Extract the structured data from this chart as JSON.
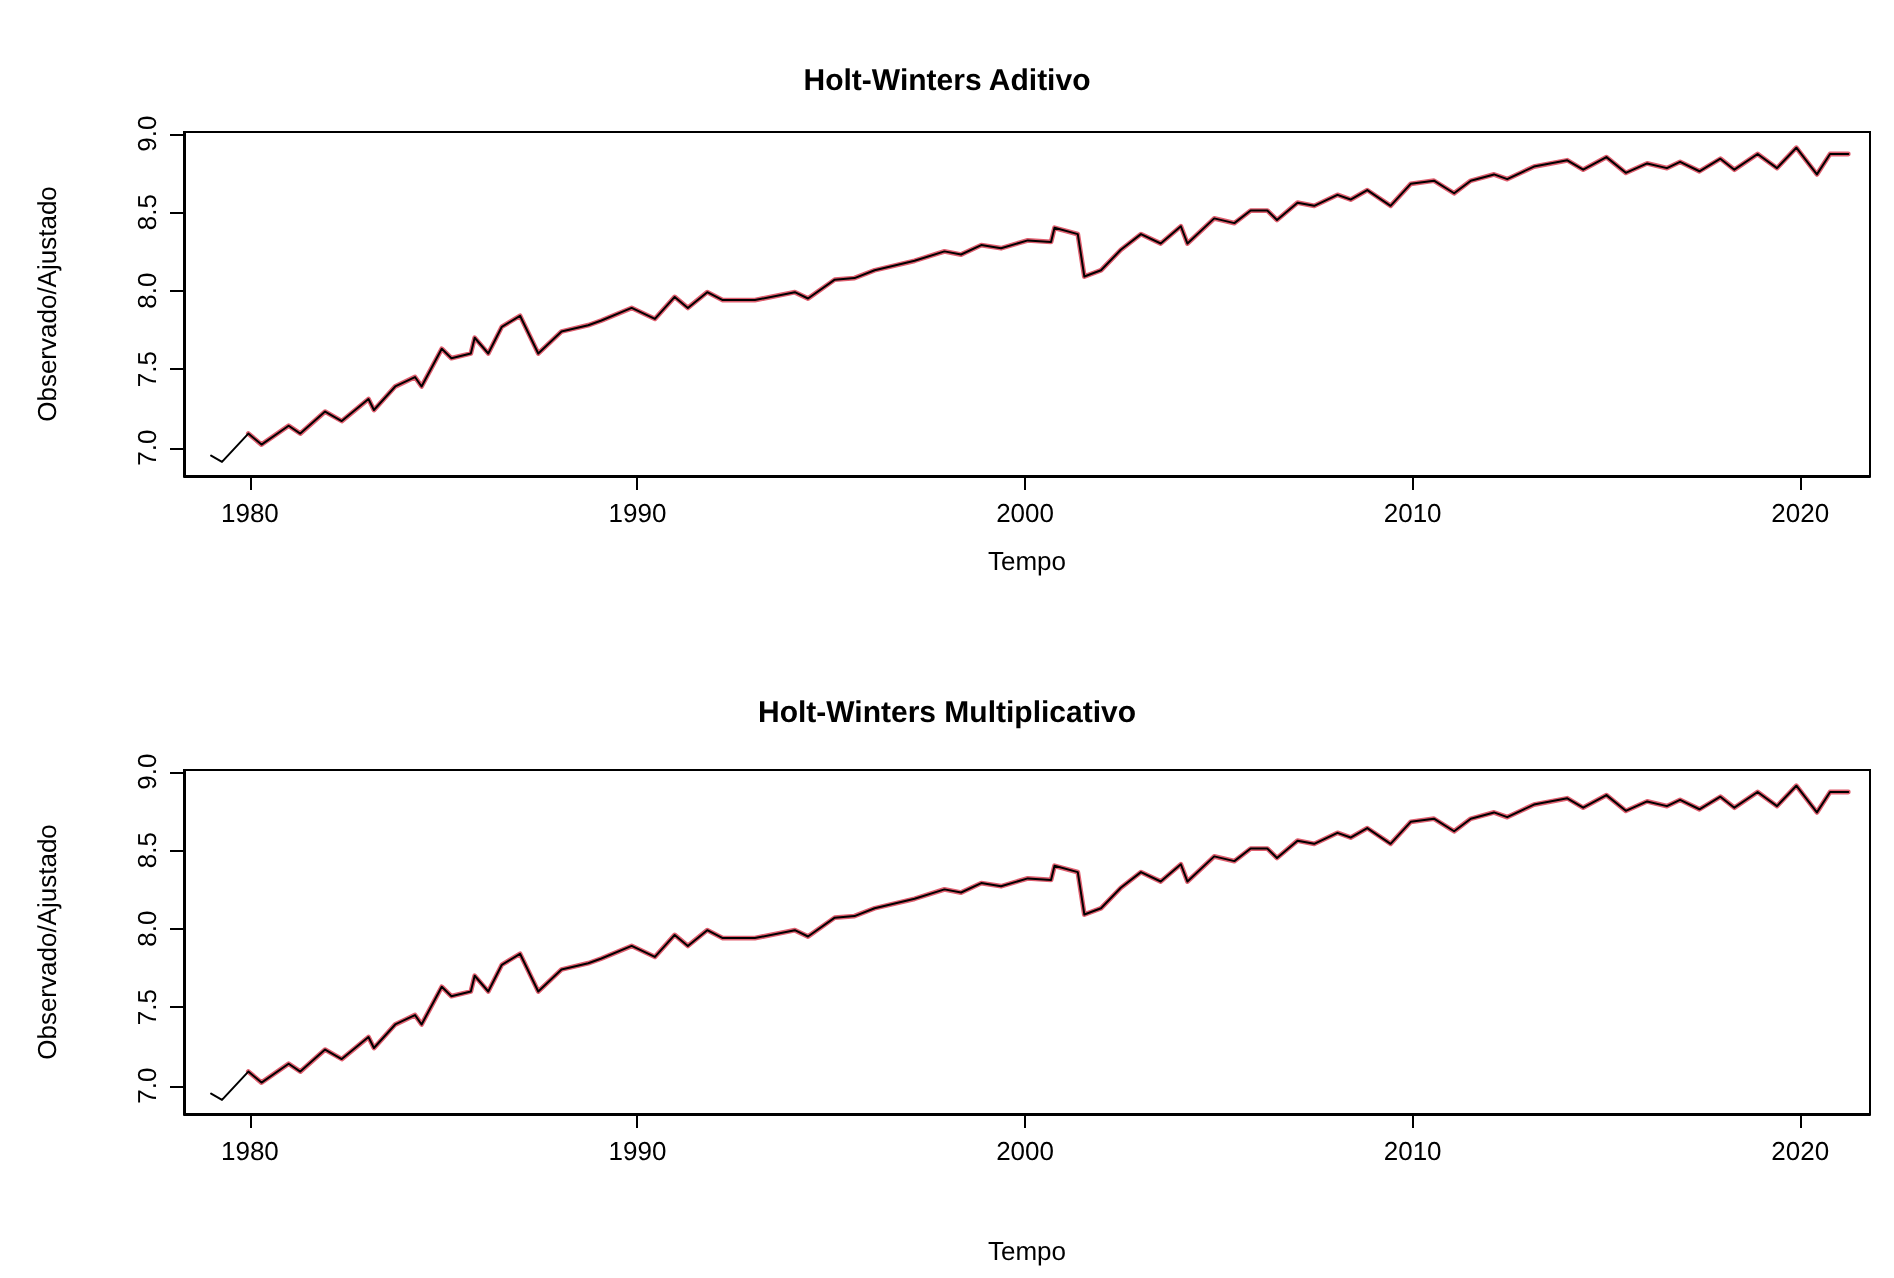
{
  "chart_data": [
    {
      "type": "line",
      "title": "Holt-Winters Aditivo",
      "xlabel": "Tempo",
      "ylabel": "Observado/Ajustado",
      "x": [
        1979.0,
        1979.28,
        1979.96,
        1980.3,
        1981.0,
        1981.3,
        1981.94,
        1982.37,
        1983.06,
        1983.2,
        1983.75,
        1984.26,
        1984.43,
        1984.95,
        1985.2,
        1985.7,
        1985.8,
        1986.15,
        1986.5,
        1986.97,
        1987.44,
        1988.04,
        1988.73,
        1989.07,
        1989.85,
        1990.45,
        1990.96,
        1991.3,
        1991.8,
        1992.2,
        1993.03,
        1994.06,
        1994.4,
        1995.09,
        1995.6,
        1996.12,
        1997.15,
        1997.92,
        1998.35,
        1998.87,
        1999.38,
        2000.07,
        2000.67,
        2000.76,
        2001.36,
        2001.53,
        2001.96,
        2002.47,
        2002.99,
        2003.5,
        2004.02,
        2004.19,
        2004.88,
        2005.4,
        2005.82,
        2006.25,
        2006.5,
        2007.03,
        2007.46,
        2008.06,
        2008.4,
        2008.83,
        2009.43,
        2009.95,
        2010.55,
        2011.07,
        2011.5,
        2012.1,
        2012.44,
        2013.13,
        2013.99,
        2014.4,
        2015.0,
        2015.5,
        2016.05,
        2016.56,
        2016.9,
        2017.4,
        2017.94,
        2018.3,
        2018.9,
        2019.4,
        2019.9,
        2020.43,
        2020.77,
        2021.24
      ],
      "series": [
        {
          "color": "#000000",
          "values": [
            6.95,
            6.91,
            7.09,
            7.02,
            7.14,
            7.09,
            7.23,
            7.17,
            7.31,
            7.24,
            7.39,
            7.45,
            7.39,
            7.63,
            7.57,
            7.6,
            7.7,
            7.6,
            7.77,
            7.84,
            7.6,
            7.74,
            7.78,
            7.81,
            7.89,
            7.82,
            7.96,
            7.89,
            7.99,
            7.94,
            7.94,
            7.99,
            7.95,
            8.07,
            8.08,
            8.13,
            8.19,
            8.25,
            8.23,
            8.29,
            8.27,
            8.32,
            8.31,
            8.4,
            8.36,
            8.09,
            8.13,
            8.26,
            8.36,
            8.3,
            8.41,
            8.3,
            8.46,
            8.43,
            8.51,
            8.51,
            8.45,
            8.56,
            8.54,
            8.61,
            8.58,
            8.64,
            8.54,
            8.68,
            8.7,
            8.62,
            8.7,
            8.74,
            8.71,
            8.79,
            8.83,
            8.77,
            8.85,
            8.75,
            8.81,
            8.78,
            8.82,
            8.76,
            8.84,
            8.77,
            8.87,
            8.78,
            8.91,
            8.74,
            8.87,
            8.87
          ]
        },
        {
          "color": "#e06070",
          "values": [
            null,
            null,
            7.09,
            7.02,
            7.14,
            7.09,
            7.23,
            7.17,
            7.31,
            7.24,
            7.39,
            7.45,
            7.39,
            7.63,
            7.57,
            7.6,
            7.7,
            7.6,
            7.77,
            7.84,
            7.6,
            7.74,
            7.78,
            7.81,
            7.89,
            7.82,
            7.96,
            7.89,
            7.99,
            7.94,
            7.94,
            7.99,
            7.95,
            8.07,
            8.08,
            8.13,
            8.19,
            8.25,
            8.23,
            8.29,
            8.27,
            8.32,
            8.31,
            8.4,
            8.36,
            8.09,
            8.13,
            8.26,
            8.36,
            8.3,
            8.41,
            8.3,
            8.46,
            8.43,
            8.51,
            8.51,
            8.45,
            8.56,
            8.54,
            8.61,
            8.58,
            8.64,
            8.54,
            8.68,
            8.7,
            8.62,
            8.7,
            8.74,
            8.71,
            8.79,
            8.83,
            8.77,
            8.85,
            8.75,
            8.81,
            8.78,
            8.82,
            8.76,
            8.84,
            8.77,
            8.87,
            8.78,
            8.91,
            8.74,
            8.87,
            8.87
          ]
        }
      ],
      "xlim": [
        1978.3,
        2021.8
      ],
      "ylim": [
        6.82,
        9.01
      ],
      "xticks": [
        1980,
        1990,
        2000,
        2010,
        2020
      ],
      "yticks": [
        {
          "value": 7,
          "label": "7.0"
        },
        {
          "value": 7.5,
          "label": "7.5"
        },
        {
          "value": 8,
          "label": "8.0"
        },
        {
          "value": 8.5,
          "label": "8.5"
        },
        {
          "value": 9,
          "label": "9.0"
        }
      ],
      "grid": false
    },
    {
      "type": "line",
      "title": "Holt-Winters Multiplicativo",
      "xlabel": "Tempo",
      "ylabel": "Observado/Ajustado",
      "x": [
        1979.0,
        1979.28,
        1979.96,
        1980.3,
        1981.0,
        1981.3,
        1981.94,
        1982.37,
        1983.06,
        1983.2,
        1983.75,
        1984.26,
        1984.43,
        1984.95,
        1985.2,
        1985.7,
        1985.8,
        1986.15,
        1986.5,
        1986.97,
        1987.44,
        1988.04,
        1988.73,
        1989.07,
        1989.85,
        1990.45,
        1990.96,
        1991.3,
        1991.8,
        1992.2,
        1993.03,
        1994.06,
        1994.4,
        1995.09,
        1995.6,
        1996.12,
        1997.15,
        1997.92,
        1998.35,
        1998.87,
        1999.38,
        2000.07,
        2000.67,
        2000.76,
        2001.36,
        2001.53,
        2001.96,
        2002.47,
        2002.99,
        2003.5,
        2004.02,
        2004.19,
        2004.88,
        2005.4,
        2005.82,
        2006.25,
        2006.5,
        2007.03,
        2007.46,
        2008.06,
        2008.4,
        2008.83,
        2009.43,
        2009.95,
        2010.55,
        2011.07,
        2011.5,
        2012.1,
        2012.44,
        2013.13,
        2013.99,
        2014.4,
        2015.0,
        2015.5,
        2016.05,
        2016.56,
        2016.9,
        2017.4,
        2017.94,
        2018.3,
        2018.9,
        2019.4,
        2019.9,
        2020.43,
        2020.77,
        2021.24
      ],
      "series": [
        {
          "color": "#000000",
          "values": [
            6.95,
            6.91,
            7.09,
            7.02,
            7.14,
            7.09,
            7.23,
            7.17,
            7.31,
            7.24,
            7.39,
            7.45,
            7.39,
            7.63,
            7.57,
            7.6,
            7.7,
            7.6,
            7.77,
            7.84,
            7.6,
            7.74,
            7.78,
            7.81,
            7.89,
            7.82,
            7.96,
            7.89,
            7.99,
            7.94,
            7.94,
            7.99,
            7.95,
            8.07,
            8.08,
            8.13,
            8.19,
            8.25,
            8.23,
            8.29,
            8.27,
            8.32,
            8.31,
            8.4,
            8.36,
            8.09,
            8.13,
            8.26,
            8.36,
            8.3,
            8.41,
            8.3,
            8.46,
            8.43,
            8.51,
            8.51,
            8.45,
            8.56,
            8.54,
            8.61,
            8.58,
            8.64,
            8.54,
            8.68,
            8.7,
            8.62,
            8.7,
            8.74,
            8.71,
            8.79,
            8.83,
            8.77,
            8.85,
            8.75,
            8.81,
            8.78,
            8.82,
            8.76,
            8.84,
            8.77,
            8.87,
            8.78,
            8.91,
            8.74,
            8.87,
            8.87
          ]
        },
        {
          "color": "#e06070",
          "values": [
            null,
            null,
            7.09,
            7.02,
            7.14,
            7.09,
            7.23,
            7.17,
            7.31,
            7.24,
            7.39,
            7.45,
            7.39,
            7.63,
            7.57,
            7.6,
            7.7,
            7.6,
            7.77,
            7.84,
            7.6,
            7.74,
            7.78,
            7.81,
            7.89,
            7.82,
            7.96,
            7.89,
            7.99,
            7.94,
            7.94,
            7.99,
            7.95,
            8.07,
            8.08,
            8.13,
            8.19,
            8.25,
            8.23,
            8.29,
            8.27,
            8.32,
            8.31,
            8.4,
            8.36,
            8.09,
            8.13,
            8.26,
            8.36,
            8.3,
            8.41,
            8.3,
            8.46,
            8.43,
            8.51,
            8.51,
            8.45,
            8.56,
            8.54,
            8.61,
            8.58,
            8.64,
            8.54,
            8.68,
            8.7,
            8.62,
            8.7,
            8.74,
            8.71,
            8.79,
            8.83,
            8.77,
            8.85,
            8.75,
            8.81,
            8.78,
            8.82,
            8.76,
            8.84,
            8.77,
            8.87,
            8.78,
            8.91,
            8.74,
            8.87,
            8.87
          ]
        }
      ],
      "xlim": [
        1978.3,
        2021.8
      ],
      "ylim": [
        6.82,
        9.01
      ],
      "xticks": [
        1980,
        1990,
        2000,
        2010,
        2020
      ],
      "yticks": [
        {
          "value": 7,
          "label": "7.0"
        },
        {
          "value": 7.5,
          "label": "7.5"
        },
        {
          "value": 8,
          "label": "8.0"
        },
        {
          "value": 8.5,
          "label": "8.5"
        },
        {
          "value": 9,
          "label": "9.0"
        }
      ],
      "grid": false
    }
  ]
}
